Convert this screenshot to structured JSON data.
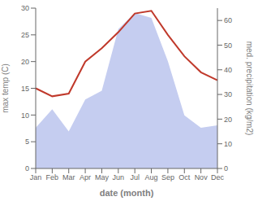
{
  "chart_data": {
    "type": "line",
    "categories": [
      "Jan",
      "Feb",
      "Mar",
      "Apr",
      "May",
      "Jun",
      "Jul",
      "Aug",
      "Sep",
      "Oct",
      "Nov",
      "Dec"
    ],
    "xlabel": "date (month)",
    "ylabel": "max temp (C)",
    "y2label": "med. precipitation (kg/m2)",
    "ylim": [
      0,
      30
    ],
    "yticks": [
      0,
      5,
      10,
      15,
      20,
      25,
      30
    ],
    "y2lim": [
      0,
      65
    ],
    "y2ticks": [
      0,
      10,
      20,
      30,
      40,
      50,
      60
    ],
    "grid": false,
    "series": [
      {
        "type": "area",
        "axis": "y2",
        "color": "#c5cdf0",
        "values": [
          16.5,
          24.0,
          15.0,
          28.0,
          31.5,
          56.5,
          63.0,
          61.0,
          43.5,
          21.5,
          16.5,
          17.5
        ]
      },
      {
        "type": "line",
        "color": "#c0392b",
        "values": [
          15.0,
          13.5,
          14.0,
          20.0,
          22.5,
          25.5,
          29.0,
          29.5,
          25.0,
          21.0,
          18.0,
          16.5
        ]
      }
    ]
  }
}
